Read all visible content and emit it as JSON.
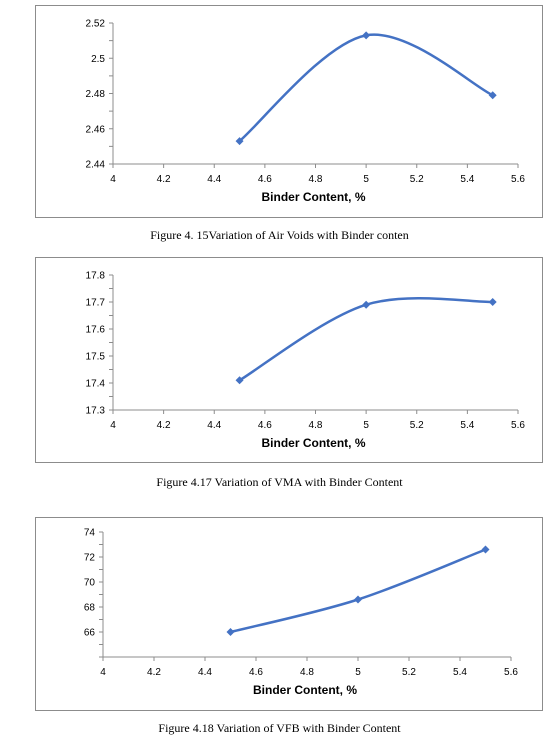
{
  "charts": [
    {
      "caption": "Figure 4. 15Variation of Air Voids with Binder conten",
      "chart_data": {
        "type": "line",
        "xlabel": "Binder Content, %",
        "ylabel": "",
        "xlim": [
          4,
          5.6
        ],
        "ylim": [
          2.44,
          2.52
        ],
        "x_ticks": [
          "4",
          "4.2",
          "4.4",
          "4.6",
          "4.8",
          "5",
          "5.2",
          "5.4",
          "5.6"
        ],
        "y_ticks": [
          "2.44",
          "2.46",
          "2.48",
          "2.5",
          "2.52"
        ],
        "y_ticks_vals": [
          2.44,
          2.46,
          2.48,
          2.5,
          2.52
        ],
        "y_ticks_display": [
          "2.44",
          "2.46",
          "",
          "2.48",
          "",
          "2.5",
          "2.52"
        ],
        "series": [
          {
            "x": [
              4.5,
              5,
              5.5
            ],
            "values": [
              2.453,
              2.513,
              2.479
            ]
          }
        ],
        "line_color": "#4472c4",
        "smooth": true,
        "grid": false
      }
    },
    {
      "caption": "Figure 4.17 Variation of VMA with Binder Content",
      "chart_data": {
        "type": "line",
        "xlabel": "Binder Content, %",
        "ylabel": "",
        "xlim": [
          4,
          5.6
        ],
        "ylim": [
          17.3,
          17.8
        ],
        "x_ticks": [
          "4",
          "4.2",
          "4.4",
          "4.6",
          "4.8",
          "5",
          "5.2",
          "5.4",
          "5.6"
        ],
        "y_ticks": [
          "17.3",
          "17.4",
          "17.5",
          "17.6",
          "17.7",
          "17.8"
        ],
        "series": [
          {
            "x": [
              4.5,
              5,
              5.5
            ],
            "values": [
              17.41,
              17.69,
              17.7
            ]
          }
        ],
        "line_color": "#4472c4",
        "smooth": true,
        "grid": false
      }
    },
    {
      "caption": "Figure 4.18 Variation of VFB with Binder Content",
      "chart_data": {
        "type": "line",
        "xlabel": "Binder Content, %",
        "ylabel": "",
        "xlim": [
          4,
          5.6
        ],
        "ylim": [
          64,
          74
        ],
        "x_ticks": [
          "4",
          "4.2",
          "4.4",
          "4.6",
          "4.8",
          "5",
          "5.2",
          "5.4",
          "5.6"
        ],
        "y_ticks": [
          "66",
          "68",
          "70",
          "72",
          "74"
        ],
        "series": [
          {
            "x": [
              4.5,
              5,
              5.5
            ],
            "values": [
              66,
              68.6,
              72.6
            ]
          }
        ],
        "line_color": "#4472c4",
        "smooth": true,
        "grid": false
      }
    }
  ]
}
